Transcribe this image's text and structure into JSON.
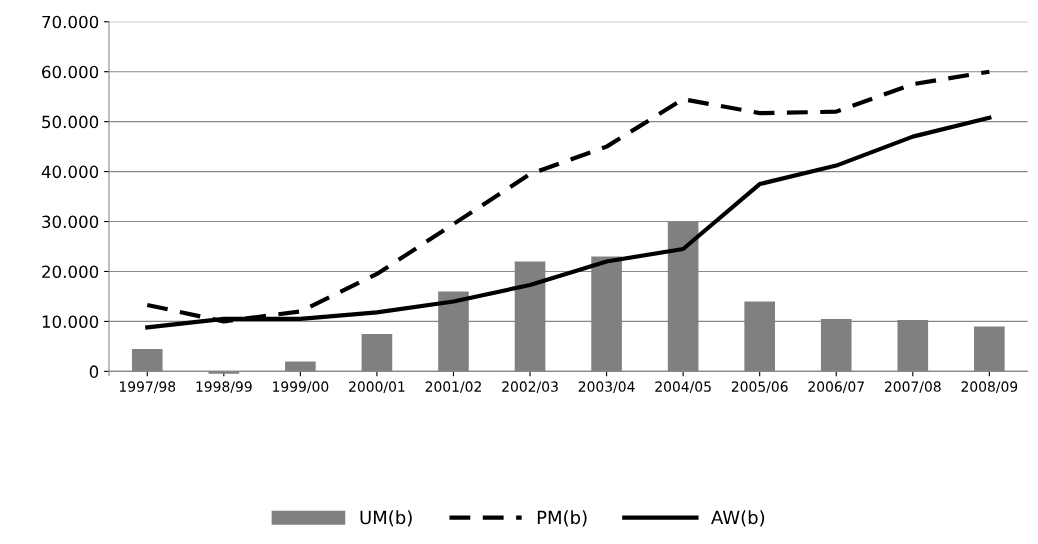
{
  "chart_data": {
    "type": "bar",
    "categories": [
      "1997/98",
      "1998/99",
      "1999/00",
      "2000/01",
      "2001/02",
      "2002/03",
      "2003/04",
      "2004/05",
      "2005/06",
      "2006/07",
      "2007/08",
      "2008/09"
    ],
    "series": [
      {
        "name": "UM(b)",
        "color": "#808080",
        "values": [
          4500,
          -500,
          2000,
          7500,
          16000,
          22000,
          23000,
          30000,
          14000,
          10500,
          10300,
          9000
        ]
      },
      {
        "name": "PM(b)",
        "type": "line",
        "line_style": "dashed",
        "color": "#000000",
        "values": [
          13300,
          10000,
          12000,
          19500,
          29500,
          39500,
          45000,
          54500,
          51700,
          52000,
          57500,
          60000
        ]
      },
      {
        "name": "AW(b)",
        "type": "line",
        "line_style": "solid",
        "color": "#000000",
        "values": [
          8800,
          10500,
          10500,
          11800,
          14000,
          17300,
          22000,
          24500,
          37500,
          41200,
          47000,
          50800
        ]
      }
    ],
    "ylim": [
      -800,
      70000
    ],
    "yticks": [
      {
        "value": 0,
        "label": "0"
      },
      {
        "value": 10000,
        "label": "10.000"
      },
      {
        "value": 20000,
        "label": "20.000"
      },
      {
        "value": 30000,
        "label": "30.000"
      },
      {
        "value": 40000,
        "label": "40.000"
      },
      {
        "value": 50000,
        "label": "50.000"
      },
      {
        "value": 60000,
        "label": "60.000"
      },
      {
        "value": 70000,
        "label": "70.000"
      }
    ],
    "grid": "y",
    "legend": "bottom",
    "marker": "none"
  }
}
